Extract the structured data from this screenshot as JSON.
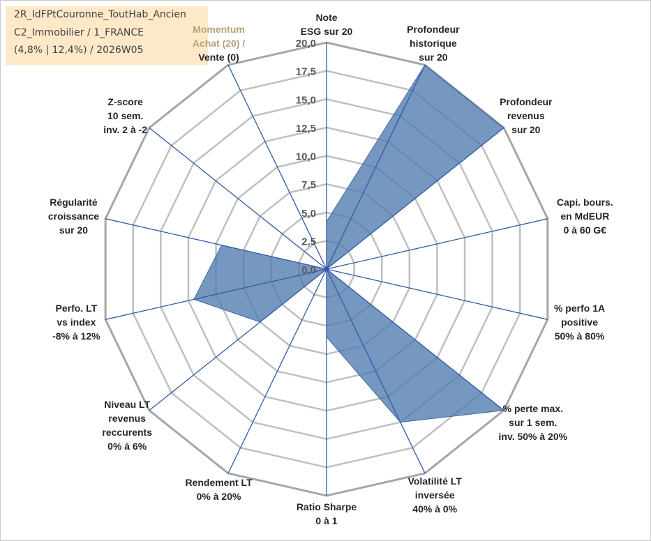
{
  "info_box": {
    "line1": "2R_IdFPtCouronne_ToutHab_Ancien",
    "line2": "C2_Immobilier / 1_FRANCE",
    "line3": "(4,8% | 12,4%) / 2026W05"
  },
  "colors": {
    "series_fill": "#4f7aae",
    "series_stroke": "#3f6aa0",
    "spoke": "#2f5aa8",
    "grid": "#bfbfbf",
    "outer_ring": "#a6a6a6",
    "info_box_bg": "#fde9c8"
  },
  "chart_data": {
    "type": "radar",
    "rlim": [
      0,
      20
    ],
    "grid": true,
    "tick_labels": [
      "0,0",
      "2,5",
      "5,0",
      "7,5",
      "10,0",
      "12,5",
      "15,0",
      "17,5",
      "20,0"
    ],
    "axes": [
      {
        "id": "note-esg",
        "lines": [
          "Note",
          "ESG sur 20"
        ]
      },
      {
        "id": "profondeur-historique",
        "lines": [
          "Profondeur",
          "historique",
          "sur 20"
        ]
      },
      {
        "id": "profondeur-revenus",
        "lines": [
          "Profondeur",
          "revenus",
          "sur 20"
        ]
      },
      {
        "id": "capi-bours",
        "lines": [
          "Capi. bours.",
          "en MdEUR",
          "0 à 60 G€"
        ]
      },
      {
        "id": "perfo-1a",
        "lines": [
          "% perfo 1A",
          "positive",
          "50% à 80%"
        ]
      },
      {
        "id": "perte-max",
        "lines": [
          "% perte max.",
          "sur 1 sem.",
          "inv. 50% à 20%"
        ]
      },
      {
        "id": "volatilite-lt",
        "lines": [
          "Volatilité LT",
          "inversée",
          "40% à 0%"
        ]
      },
      {
        "id": "ratio-sharpe",
        "lines": [
          "Ratio Sharpe",
          "0 à 1"
        ]
      },
      {
        "id": "rendement-lt",
        "lines": [
          "Rendement LT",
          "0% à 20%"
        ]
      },
      {
        "id": "niveau-lt-revenus",
        "lines": [
          "Niveau LT",
          "revenus",
          "reccurents",
          "0% à 6%"
        ]
      },
      {
        "id": "perfo-lt-index",
        "lines": [
          "Perfo. LT",
          "vs index",
          "-8% à 12%"
        ]
      },
      {
        "id": "regularite-croissance",
        "lines": [
          "Régularité",
          "croissance",
          "sur 20"
        ]
      },
      {
        "id": "z-score",
        "lines": [
          "Z-score",
          "10 sem.",
          "inv. 2 à -2"
        ]
      },
      {
        "id": "momentum",
        "lines": [
          "Momentum",
          "Achat (20) /",
          "Vente (0)"
        ]
      }
    ],
    "series": [
      {
        "values": [
          4.2,
          20.0,
          20.0,
          0.0,
          0.0,
          20.0,
          15.0,
          6.0,
          0.0,
          7.5,
          12.0,
          9.5,
          0.0,
          0.0
        ]
      }
    ]
  }
}
